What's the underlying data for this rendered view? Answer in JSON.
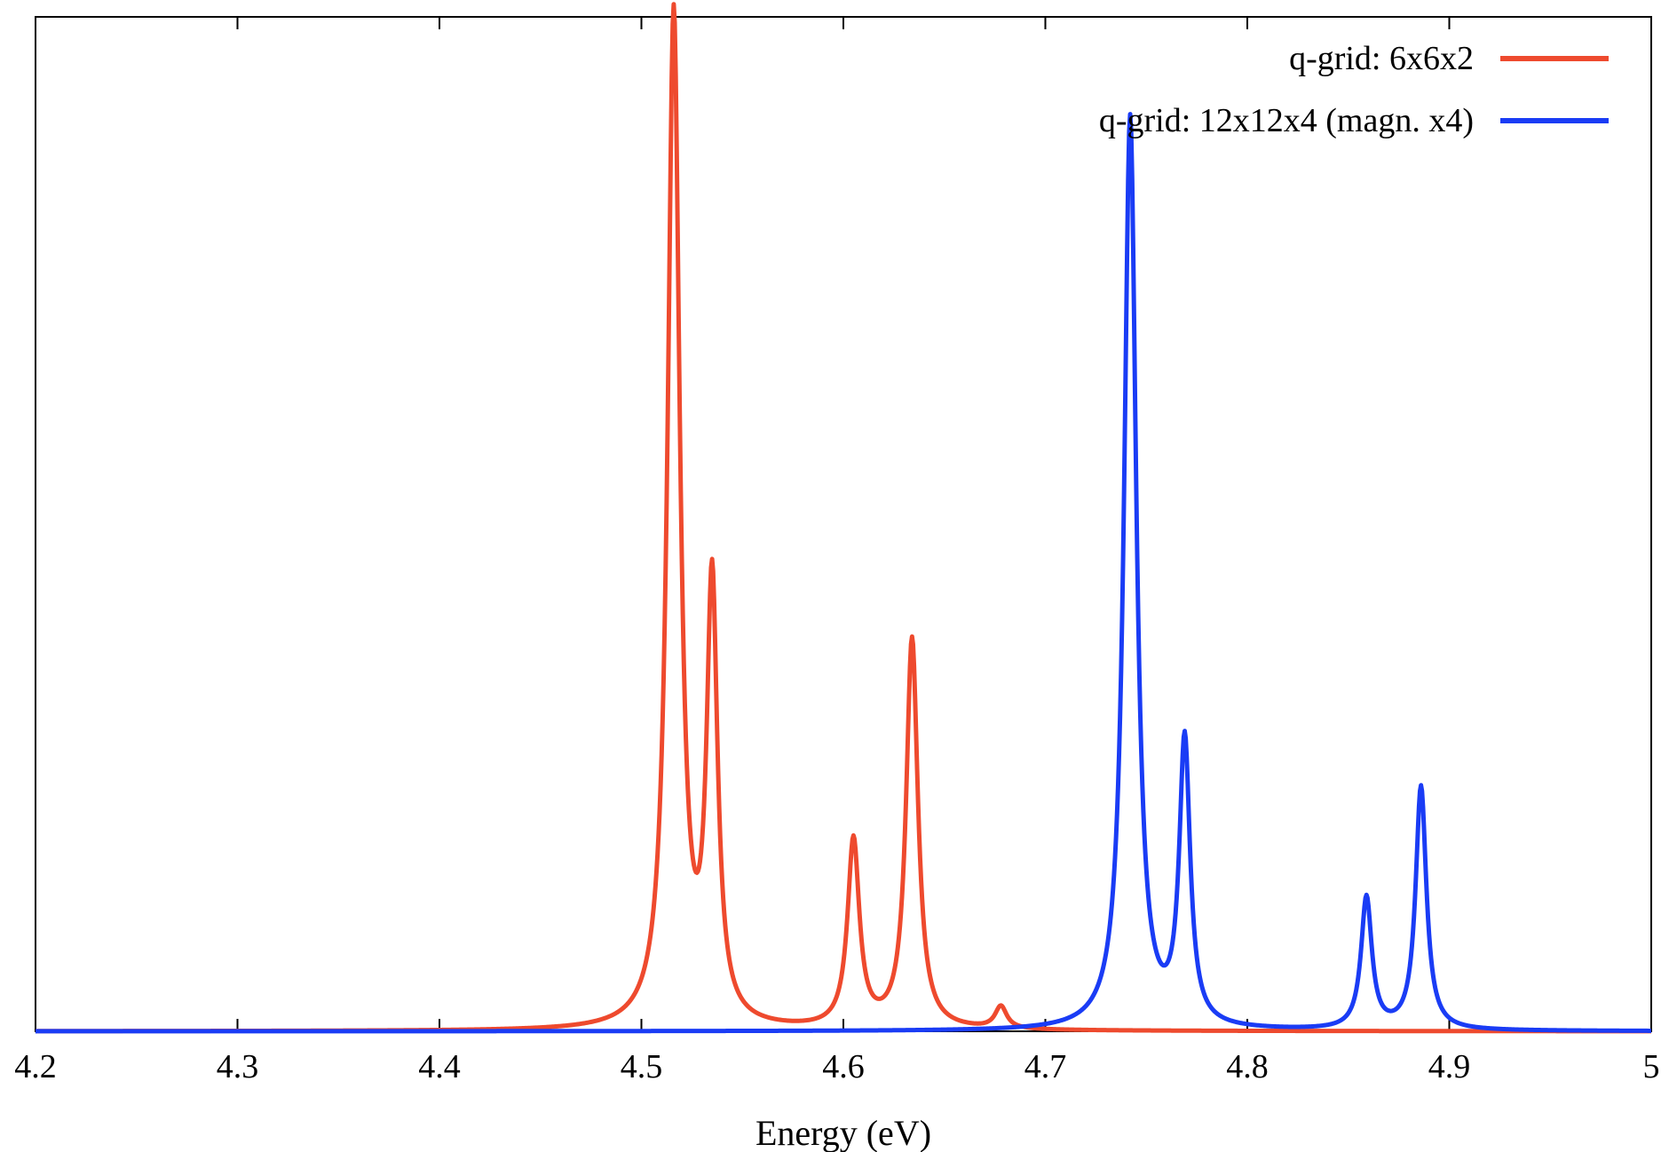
{
  "chart_data": {
    "type": "line",
    "title": "",
    "xlabel": "Energy (eV)",
    "ylabel": "",
    "xlim": [
      4.2,
      5.0
    ],
    "ylim": [
      0,
      1.0
    ],
    "x_ticks": [
      4.2,
      4.3,
      4.4,
      4.5,
      4.6,
      4.7,
      4.8,
      4.9,
      5.0
    ],
    "x_tick_labels": [
      "4.2",
      "4.3",
      "4.4",
      "4.5",
      "4.6",
      "4.7",
      "4.8",
      "4.9",
      "5"
    ],
    "y_tick_labels_shown": false,
    "grid": false,
    "legend_position": "top-right",
    "line_shape": "lorentzian-peaks",
    "series": [
      {
        "name": "q-grid: 6x6x2",
        "color": "#ee4a2e",
        "peaks": [
          {
            "x": 4.516,
            "y": 1.0,
            "width": 0.0036
          },
          {
            "x": 4.535,
            "y": 0.43,
            "width": 0.0032
          },
          {
            "x": 4.605,
            "y": 0.185,
            "width": 0.0035
          },
          {
            "x": 4.634,
            "y": 0.385,
            "width": 0.0035
          },
          {
            "x": 4.678,
            "y": 0.022,
            "width": 0.0035
          }
        ]
      },
      {
        "name": "q-grid: 12x12x4 (magn. x4)",
        "color": "#1a3cf5",
        "peaks": [
          {
            "x": 4.742,
            "y": 0.9,
            "width": 0.0036
          },
          {
            "x": 4.769,
            "y": 0.28,
            "width": 0.0032
          },
          {
            "x": 4.859,
            "y": 0.13,
            "width": 0.0032
          },
          {
            "x": 4.886,
            "y": 0.24,
            "width": 0.0032
          }
        ]
      }
    ]
  }
}
